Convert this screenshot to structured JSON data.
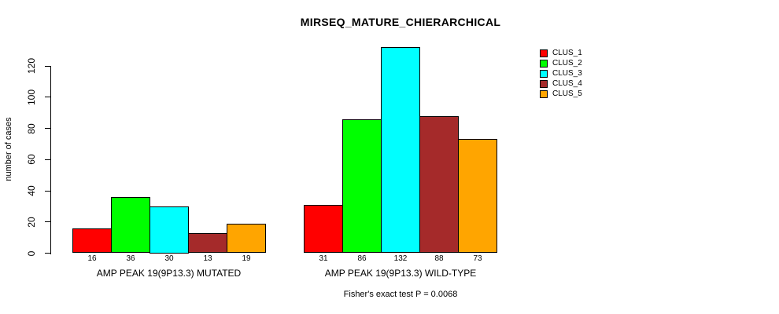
{
  "chart_data": {
    "type": "bar",
    "title": "MIRSEQ_MATURE_CHIERARCHICAL",
    "ylabel": "number of cases",
    "xlabel": "",
    "footnote": "Fisher's exact test P = 0.0068",
    "ylim": [
      0,
      132
    ],
    "yticks": [
      0,
      20,
      40,
      60,
      80,
      100,
      120
    ],
    "grid": false,
    "legend_position": "top-right",
    "bar_value_labels_shown": true,
    "categories": [
      "AMP PEAK 19(9P13.3) MUTATED",
      "AMP PEAK 19(9P13.3) WILD-TYPE"
    ],
    "series": [
      {
        "name": "CLUS_1",
        "color": "#FF0000",
        "values": [
          16,
          31
        ]
      },
      {
        "name": "CLUS_2",
        "color": "#00FF00",
        "values": [
          36,
          86
        ]
      },
      {
        "name": "CLUS_3",
        "color": "#00FFFF",
        "values": [
          30,
          132
        ]
      },
      {
        "name": "CLUS_4",
        "color": "#A52A2A",
        "values": [
          13,
          88
        ]
      },
      {
        "name": "CLUS_5",
        "color": "#FFA500",
        "values": [
          19,
          73
        ]
      }
    ]
  }
}
